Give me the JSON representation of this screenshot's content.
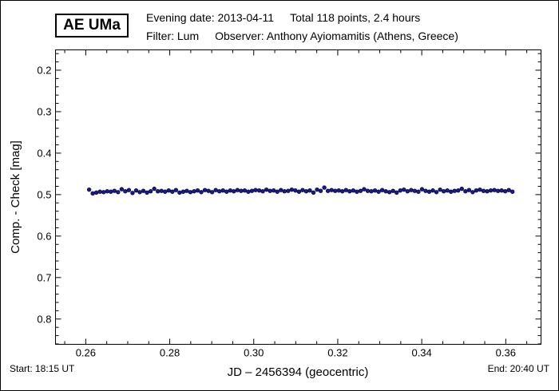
{
  "header": {
    "star_name": "AE UMa",
    "evening_date": "Evening date: 2013-04-11",
    "total": "Total 118 points, 2.4 hours",
    "filter": "Filter: Lum",
    "observer": "Observer: Anthony Ayiomamitis (Athens, Greece)"
  },
  "footer": {
    "start": "Start: 18:15 UT",
    "end": "End: 20:40 UT"
  },
  "chart_data": {
    "type": "scatter",
    "xlabel": "JD – 2456394  (geocentric)",
    "ylabel": "Comp. - Check [mag]",
    "xlim": [
      0.2528,
      0.3684
    ],
    "ylim": [
      0.151,
      0.861
    ],
    "y_inverted": true,
    "xticks": [
      0.26,
      0.28,
      0.3,
      0.32,
      0.34,
      0.36
    ],
    "xtick_labels": [
      "0.26",
      "0.28",
      "0.30",
      "0.32",
      "0.34",
      "0.36"
    ],
    "yticks": [
      0.2,
      0.3,
      0.4,
      0.5,
      0.6,
      0.7,
      0.8
    ],
    "ytick_labels": [
      "0.2",
      "0.3",
      "0.4",
      "0.5",
      "0.6",
      "0.7",
      "0.8"
    ],
    "grid": false,
    "marker_color": "#1a1a8c",
    "x_start": 0.2608,
    "x_end": 0.3616,
    "values": [
      0.488,
      0.497,
      0.495,
      0.493,
      0.494,
      0.492,
      0.493,
      0.491,
      0.494,
      0.487,
      0.492,
      0.489,
      0.496,
      0.49,
      0.494,
      0.491,
      0.495,
      0.492,
      0.486,
      0.492,
      0.491,
      0.493,
      0.49,
      0.493,
      0.489,
      0.495,
      0.493,
      0.491,
      0.494,
      0.492,
      0.49,
      0.494,
      0.489,
      0.491,
      0.494,
      0.489,
      0.492,
      0.49,
      0.493,
      0.49,
      0.492,
      0.489,
      0.491,
      0.49,
      0.493,
      0.491,
      0.489,
      0.49,
      0.492,
      0.488,
      0.491,
      0.49,
      0.493,
      0.489,
      0.492,
      0.491,
      0.488,
      0.49,
      0.493,
      0.489,
      0.492,
      0.49,
      0.495,
      0.488,
      0.491,
      0.483,
      0.491,
      0.489,
      0.491,
      0.49,
      0.492,
      0.489,
      0.492,
      0.49,
      0.493,
      0.491,
      0.487,
      0.491,
      0.492,
      0.49,
      0.493,
      0.489,
      0.492,
      0.494,
      0.491,
      0.495,
      0.49,
      0.488,
      0.492,
      0.489,
      0.491,
      0.493,
      0.487,
      0.491,
      0.493,
      0.49,
      0.494,
      0.488,
      0.492,
      0.49,
      0.493,
      0.491,
      0.49,
      0.486,
      0.492,
      0.489,
      0.494,
      0.49,
      0.488,
      0.491,
      0.492,
      0.49,
      0.489,
      0.491,
      0.49,
      0.492,
      0.489,
      0.493
    ]
  }
}
